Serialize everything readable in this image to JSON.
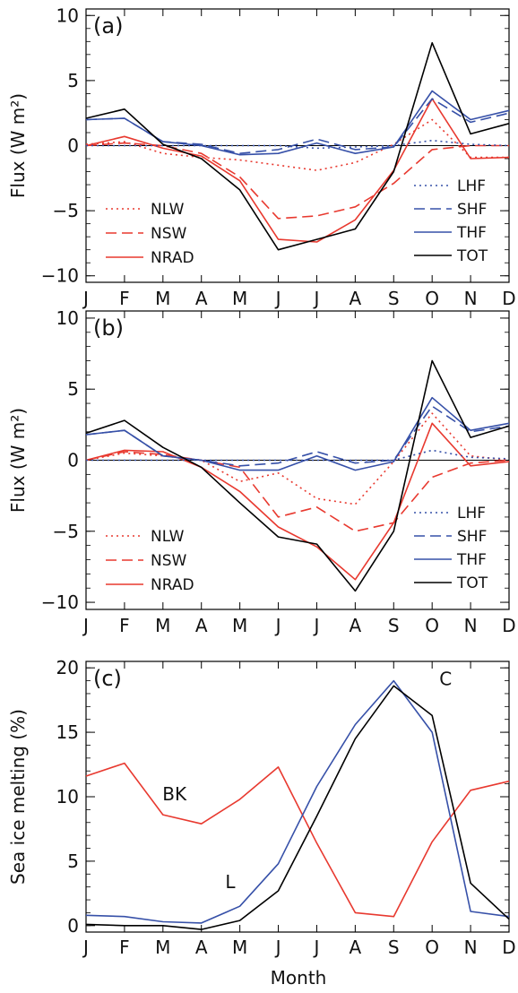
{
  "months": [
    "J",
    "F",
    "M",
    "A",
    "M",
    "J",
    "J",
    "A",
    "S",
    "O",
    "N",
    "D"
  ],
  "xlabel": "Month",
  "colors": {
    "red": "#e8392f",
    "blue": "#3650a8",
    "black": "#000000"
  },
  "chart_data": [
    {
      "type": "line",
      "panel": "(a)",
      "ylabel": "Flux  (W m²)",
      "ylim": [
        -10.5,
        10.5
      ],
      "yticks": [
        10,
        5,
        0,
        -5,
        -10
      ],
      "ytick_labels": [
        "10",
        "5",
        "0",
        "−5",
        "−10"
      ],
      "zero_line": true,
      "legend_left": [
        "NLW",
        "NSW",
        "NRAD"
      ],
      "legend_right": [
        "LHF",
        "SHF",
        "THF",
        "TOT"
      ],
      "series": [
        {
          "name": "NLW",
          "color": "red",
          "dash": "dotted",
          "values": [
            0.1,
            0.3,
            -0.6,
            -0.9,
            -1.1,
            -1.5,
            -1.9,
            -1.3,
            0.1,
            2.0,
            -0.9,
            -0.9
          ]
        },
        {
          "name": "NSW",
          "color": "red",
          "dash": "dashed",
          "values": [
            0.0,
            0.2,
            0.0,
            -0.6,
            -2.4,
            -5.6,
            -5.4,
            -4.7,
            -2.9,
            -0.3,
            0.0,
            0.0
          ]
        },
        {
          "name": "NRAD",
          "color": "red",
          "dash": "solid",
          "values": [
            0.0,
            0.7,
            -0.2,
            -0.8,
            -2.7,
            -7.2,
            -7.4,
            -5.7,
            -1.9,
            3.6,
            -1.0,
            -0.9
          ]
        },
        {
          "name": "LHF",
          "color": "blue",
          "dash": "dotted",
          "values": [
            0.0,
            0.0,
            0.0,
            0.0,
            0.0,
            0.0,
            -0.2,
            -0.1,
            0.0,
            0.4,
            0.1,
            0.0
          ]
        },
        {
          "name": "SHF",
          "color": "blue",
          "dash": "dashed",
          "values": [
            2.0,
            2.1,
            0.3,
            0.1,
            -0.6,
            -0.3,
            0.5,
            -0.3,
            -0.1,
            3.6,
            1.8,
            2.5
          ]
        },
        {
          "name": "THF",
          "color": "blue",
          "dash": "solid",
          "values": [
            2.0,
            2.1,
            0.3,
            0.0,
            -0.7,
            -0.6,
            0.2,
            -0.6,
            -0.1,
            4.2,
            2.0,
            2.7
          ]
        },
        {
          "name": "TOT",
          "color": "black",
          "dash": "solid",
          "values": [
            2.1,
            2.8,
            0.1,
            -1.0,
            -3.4,
            -8.0,
            -7.2,
            -6.4,
            -2.0,
            7.9,
            0.9,
            1.7
          ]
        }
      ]
    },
    {
      "type": "line",
      "panel": "(b)",
      "ylabel": "Flux  (W m²)",
      "ylim": [
        -10.5,
        10.5
      ],
      "yticks": [
        10,
        5,
        0,
        -5,
        -10
      ],
      "ytick_labels": [
        "10",
        "5",
        "0",
        "−5",
        "−10"
      ],
      "zero_line": true,
      "legend_left": [
        "NLW",
        "NSW",
        "NRAD"
      ],
      "legend_right": [
        "LHF",
        "SHF",
        "THF",
        "TOT"
      ],
      "series": [
        {
          "name": "NLW",
          "color": "red",
          "dash": "dotted",
          "values": [
            0.0,
            0.5,
            0.3,
            0.0,
            -1.5,
            -0.9,
            -2.7,
            -3.1,
            -0.1,
            3.3,
            0.3,
            0.0
          ]
        },
        {
          "name": "NSW",
          "color": "red",
          "dash": "dashed",
          "values": [
            0.0,
            0.6,
            0.4,
            0.0,
            -0.5,
            -4.0,
            -3.3,
            -5.0,
            -4.4,
            -1.2,
            -0.2,
            0.0
          ]
        },
        {
          "name": "NRAD",
          "color": "red",
          "dash": "solid",
          "values": [
            0.0,
            0.7,
            0.6,
            -0.5,
            -2.2,
            -4.7,
            -6.1,
            -8.4,
            -4.4,
            2.6,
            -0.4,
            -0.1
          ]
        },
        {
          "name": "LHF",
          "color": "blue",
          "dash": "dotted",
          "values": [
            0.0,
            0.0,
            0.0,
            0.0,
            0.0,
            0.0,
            0.0,
            0.0,
            0.0,
            0.7,
            0.2,
            0.1
          ]
        },
        {
          "name": "SHF",
          "color": "blue",
          "dash": "dashed",
          "values": [
            1.8,
            2.1,
            0.3,
            0.0,
            -0.4,
            -0.2,
            0.6,
            -0.2,
            0.0,
            3.8,
            2.0,
            2.4
          ]
        },
        {
          "name": "THF",
          "color": "blue",
          "dash": "solid",
          "values": [
            1.8,
            2.1,
            0.3,
            0.0,
            -0.7,
            -0.7,
            0.3,
            -0.7,
            -0.1,
            4.4,
            2.1,
            2.6
          ]
        },
        {
          "name": "TOT",
          "color": "black",
          "dash": "solid",
          "values": [
            1.9,
            2.8,
            0.9,
            -0.5,
            -3.0,
            -5.4,
            -5.9,
            -9.2,
            -5.0,
            7.0,
            1.6,
            2.4
          ]
        }
      ]
    },
    {
      "type": "line",
      "panel": "(c)",
      "ylabel": "Sea  ice melting  (%)",
      "xlabel": "Month",
      "ylim": [
        -0.5,
        20.5
      ],
      "yticks": [
        20,
        15,
        10,
        5,
        0
      ],
      "ytick_labels": [
        "20",
        "15",
        "10",
        "5",
        "0"
      ],
      "zero_line": false,
      "annotations": [
        {
          "text": "BK",
          "series": "BK"
        },
        {
          "text": "L",
          "series": "L"
        },
        {
          "text": "C",
          "series": "C"
        }
      ],
      "series": [
        {
          "name": "BK",
          "color": "red",
          "dash": "solid",
          "values": [
            11.6,
            12.6,
            8.6,
            7.9,
            9.8,
            12.3,
            6.4,
            1.0,
            0.7,
            6.5,
            10.5,
            11.2
          ]
        },
        {
          "name": "L",
          "color": "blue",
          "dash": "solid",
          "values": [
            0.8,
            0.7,
            0.3,
            0.2,
            1.5,
            4.8,
            10.8,
            15.6,
            19.0,
            15.0,
            1.1,
            0.7
          ]
        },
        {
          "name": "C",
          "color": "black",
          "dash": "solid",
          "values": [
            0.1,
            0.0,
            0.0,
            -0.3,
            0.4,
            2.7,
            8.5,
            14.5,
            18.6,
            16.3,
            3.3,
            0.5
          ]
        }
      ]
    }
  ]
}
